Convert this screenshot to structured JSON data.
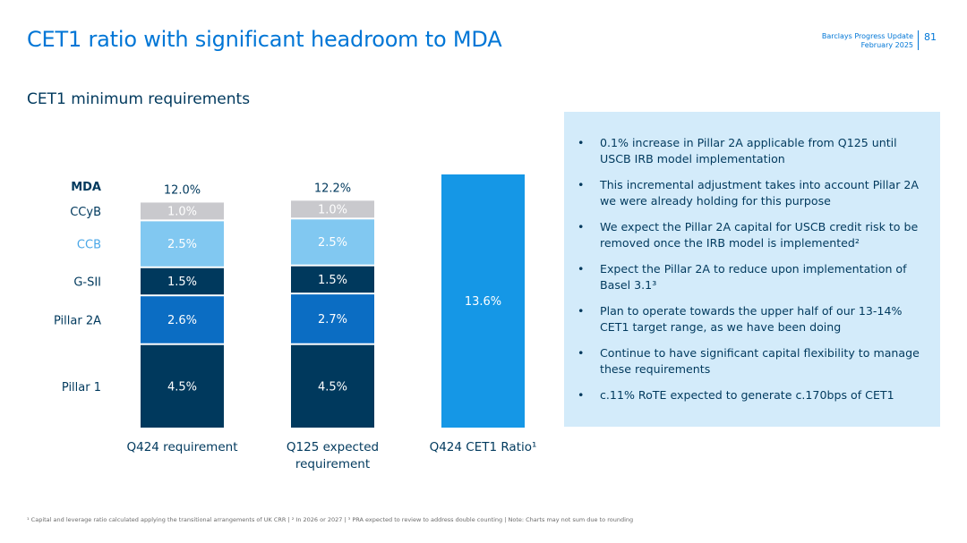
{
  "header": {
    "title": "CET1 ratio with significant headroom to MDA",
    "brand_line1": "Barclays Progress Update",
    "brand_line2": "February 2025",
    "page_number": "81"
  },
  "subtitle": "CET1 minimum requirements",
  "colors": {
    "pillar1": "#00395d",
    "pillar2a": "#0b6dc3",
    "gsii": "#00395d",
    "ccb": "#81c8f1",
    "ccyb": "#c9c9cd",
    "ratio": "#1597e6",
    "label_dark": "#00395d",
    "label_light": "#4aa7e7"
  },
  "chart_data": {
    "type": "bar",
    "stacked": true,
    "categories": [
      "Q424 requirement",
      "Q125 expected\nrequirement",
      "Q424 CET1 Ratio¹"
    ],
    "row_labels": [
      {
        "name": "MDA",
        "bold": true,
        "light": false
      },
      {
        "name": "CCyB",
        "bold": false,
        "light": false
      },
      {
        "name": "CCB",
        "bold": false,
        "light": true
      },
      {
        "name": "G-SII",
        "bold": false,
        "light": false
      },
      {
        "name": "Pillar 2A",
        "bold": false,
        "light": false
      },
      {
        "name": "Pillar 1",
        "bold": false,
        "light": false
      }
    ],
    "series": [
      {
        "name": "Pillar 1",
        "values": [
          4.5,
          4.5,
          null
        ],
        "labels": [
          "4.5%",
          "4.5%",
          ""
        ],
        "color_key": "pillar1"
      },
      {
        "name": "Pillar 2A",
        "values": [
          2.6,
          2.7,
          null
        ],
        "labels": [
          "2.6%",
          "2.7%",
          ""
        ],
        "color_key": "pillar2a"
      },
      {
        "name": "G-SII",
        "values": [
          1.5,
          1.5,
          null
        ],
        "labels": [
          "1.5%",
          "1.5%",
          ""
        ],
        "color_key": "gsii"
      },
      {
        "name": "CCB",
        "values": [
          2.5,
          2.5,
          null
        ],
        "labels": [
          "2.5%",
          "2.5%",
          ""
        ],
        "color_key": "ccb"
      },
      {
        "name": "CCyB",
        "values": [
          1.0,
          1.0,
          null
        ],
        "labels": [
          "1.0%",
          "1.0%",
          ""
        ],
        "color_key": "ccyb"
      },
      {
        "name": "CET1 Ratio",
        "values": [
          null,
          null,
          13.6
        ],
        "labels": [
          "",
          "",
          "13.6%"
        ],
        "color_key": "ratio"
      }
    ],
    "totals": [
      "12.0%",
      "12.2%",
      ""
    ],
    "ylim": [
      0,
      14.8
    ]
  },
  "bullets": [
    "0.1% increase in Pillar 2A applicable from Q125 until USCB IRB model implementation",
    "This incremental adjustment takes into account Pillar 2A we were already holding for this purpose",
    "We expect the Pillar 2A capital for USCB credit risk to be removed once the IRB model is implemented²",
    "Expect the Pillar 2A to reduce upon implementation of Basel 3.1³",
    "Plan to operate towards the upper half of our 13-14% CET1 target range, as we have been doing",
    "Continue to have significant capital flexibility to manage these requirements",
    "c.11% RoTE expected to generate c.170bps of CET1"
  ],
  "footer": "¹ Capital and leverage ratio calculated applying the transitional arrangements of UK CRR | ² In 2026 or 2027 | ³ PRA expected to review to address double counting | Note: Charts may not sum due to rounding"
}
